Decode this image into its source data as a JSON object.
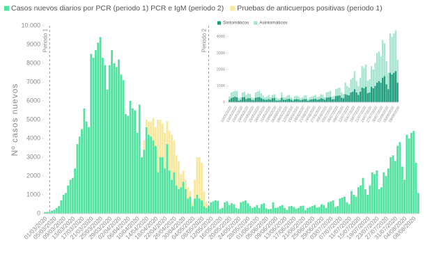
{
  "chart_data": [
    {
      "type": "bar",
      "stacked": true,
      "y_label": "Nº casos nuevos",
      "annotations": [
        "Periodo 1",
        "Periodo 2"
      ],
      "ylim": [
        0,
        10000
      ],
      "yticks": [
        0,
        1000,
        2000,
        3000,
        4000,
        5000,
        6000,
        7000,
        8000,
        9000,
        {
          "value": 10000,
          "label": "10.000"
        }
      ],
      "categories": [
        "01/03/2020",
        null,
        null,
        null,
        "05/03/2020",
        null,
        null,
        null,
        "09/03/2020",
        null,
        null,
        null,
        "13/03/2020",
        null,
        null,
        null,
        "17/03/2020",
        null,
        null,
        null,
        "21/03/2020",
        null,
        null,
        null,
        "25/03/2020",
        null,
        null,
        null,
        "29/03/2020",
        null,
        null,
        null,
        "02/04/2020",
        null,
        null,
        null,
        "06/04/2020",
        null,
        null,
        null,
        "10/04/2020",
        null,
        null,
        null,
        "14/04/2020",
        null,
        null,
        null,
        "18/04/2020",
        null,
        null,
        null,
        "22/04/2020",
        null,
        null,
        null,
        "26/04/2020",
        null,
        null,
        null,
        "30/04/2020",
        null,
        null,
        null,
        "04/05/2020",
        null,
        null,
        null,
        "08/05/2020",
        null,
        null,
        null,
        "12/05/2020",
        null,
        null,
        null,
        "16/05/2020",
        null,
        null,
        null,
        "20/05/2020",
        null,
        null,
        null,
        "24/05/2020",
        null,
        null,
        null,
        "28/05/2020",
        null,
        null,
        null,
        "01/06/2020",
        null,
        null,
        null,
        "05/06/2020",
        null,
        null,
        null,
        "09/06/2020",
        null,
        null,
        null,
        "13/06/2020",
        null,
        null,
        null,
        "17/06/2020",
        null,
        null,
        null,
        "21/06/2020",
        null,
        null,
        null,
        "25/06/2020",
        null,
        null,
        null,
        "29/06/2020",
        null,
        null,
        null,
        "03/07/2020",
        null,
        null,
        null,
        "07/07/2020",
        null,
        null,
        null,
        "11/07/2020",
        null,
        null,
        null,
        "15/07/2020",
        null,
        null,
        null,
        "19/07/2020",
        null,
        null,
        null,
        "23/07/2020",
        null,
        null,
        null,
        "27/07/2020",
        null,
        null,
        null,
        "31/07/2020",
        null,
        null,
        null,
        "04/08/2020",
        null,
        null,
        null,
        "08/08/2020",
        null,
        null
      ],
      "series": [
        {
          "name": "Casos nuevos diarios por PCR (periodo 1) PCR e IgM (periodo 2)",
          "color": "#52e3a1",
          "values": [
            80,
            90,
            100,
            150,
            200,
            300,
            400,
            700,
            1000,
            1100,
            1500,
            1800,
            1900,
            2400,
            3700,
            4100,
            4500,
            5600,
            4900,
            4600,
            8500,
            8300,
            8700,
            9100,
            9400,
            8300,
            7900,
            6600,
            7900,
            8700,
            8000,
            7800,
            8200,
            7400,
            7100,
            5300,
            5200,
            6000,
            5600,
            5500,
            4300,
            5800,
            3000,
            3400,
            4600,
            4200,
            4100,
            3900,
            3600,
            2200,
            3000,
            3000,
            2400,
            3700,
            2300,
            1800,
            2200,
            1500,
            1300,
            1400,
            1700,
            1300,
            800,
            900,
            400,
            800,
            1000,
            800,
            700,
            400,
            300,
            400,
            600,
            650,
            700,
            680,
            250,
            300,
            600,
            650,
            450,
            550,
            500,
            300,
            250,
            600,
            650,
            700,
            550,
            400,
            300,
            350,
            450,
            300,
            500,
            550,
            280,
            230,
            250,
            600,
            300,
            320,
            400,
            450,
            300,
            200,
            380,
            400,
            350,
            250,
            300,
            400,
            420,
            180,
            300,
            350,
            400,
            450,
            320,
            350,
            500,
            450,
            300,
            600,
            650,
            700,
            350,
            400,
            800,
            850,
            900,
            600,
            500,
            1200,
            1000,
            900,
            1400,
            1500,
            1900,
            1300,
            1000,
            1500,
            2200,
            2100,
            2300,
            1300,
            1400,
            2200,
            2000,
            2400,
            3000,
            3100,
            2800,
            3600,
            3800,
            2500,
            1800,
            4200,
            4000,
            4300,
            4400,
            2700,
            1100
          ]
        },
        {
          "name": "Pruebas de anticuerpos positivas (periodo 1)",
          "color": "#f8e79c",
          "values": [
            null,
            null,
            null,
            null,
            null,
            null,
            null,
            null,
            null,
            null,
            null,
            null,
            null,
            null,
            null,
            null,
            null,
            null,
            null,
            null,
            null,
            null,
            null,
            null,
            null,
            null,
            null,
            null,
            null,
            null,
            null,
            null,
            null,
            null,
            null,
            null,
            null,
            null,
            null,
            null,
            null,
            null,
            null,
            500,
            400,
            700,
            800,
            1200,
            1000,
            2800,
            2000,
            1800,
            1900,
            1200,
            2100,
            2400,
            1700,
            1600,
            1500,
            700,
            600,
            500,
            600,
            300,
            200,
            1000,
            2000,
            2200,
            2000,
            800,
            300,
            null,
            null,
            null,
            null,
            null,
            null,
            null,
            null,
            null,
            null,
            null,
            null,
            null,
            null,
            null,
            null,
            null,
            null,
            null,
            null,
            null,
            null,
            null,
            null,
            null,
            null,
            null,
            null,
            null,
            null,
            null,
            null,
            null,
            null,
            null,
            null,
            null,
            null,
            null,
            null,
            null,
            null,
            null,
            null,
            null,
            null,
            null,
            null,
            null,
            null,
            null,
            null,
            null,
            null,
            null,
            null,
            null,
            null,
            null,
            null,
            null,
            null,
            null,
            null,
            null,
            null,
            null,
            null,
            null,
            null,
            null,
            null,
            null,
            null,
            null,
            null,
            null,
            null,
            null,
            null,
            null,
            null,
            null,
            null,
            null,
            null,
            null,
            null,
            null,
            null,
            null,
            null
          ]
        }
      ]
    },
    {
      "type": "bar",
      "stacked": true,
      "ylim": [
        0,
        4500
      ],
      "yticks": [
        0,
        1000,
        2000,
        3000,
        4000
      ],
      "categories": [
        "10/05/2020",
        null,
        null,
        "13/05/2020",
        null,
        null,
        "16/05/2020",
        null,
        null,
        "19/05/2020",
        null,
        null,
        "22/05/2020",
        null,
        null,
        "25/05/2020",
        null,
        null,
        "28/05/2020",
        null,
        null,
        "31/05/2020",
        null,
        null,
        "03/06/2020",
        null,
        null,
        "06/06/2020",
        null,
        null,
        "09/06/2020",
        null,
        null,
        "12/06/2020",
        null,
        null,
        "15/06/2020",
        null,
        null,
        "18/06/2020",
        null,
        null,
        "21/06/2020",
        null,
        null,
        "24/06/2020",
        null,
        null,
        "27/06/2020",
        null,
        null,
        "30/06/2020",
        null,
        null,
        "03/07/2020",
        null,
        null,
        "06/07/2020",
        null,
        null,
        "09/07/2020",
        null,
        null,
        "12/07/2020",
        null,
        null,
        "15/07/2020",
        null,
        null,
        "18/07/2020",
        null,
        null,
        "21/07/2020",
        null,
        null,
        "24/07/2020",
        null,
        null,
        "27/07/2020",
        null,
        null,
        "30/07/2020",
        null,
        null,
        "02/08/2020",
        null,
        null,
        "05/08/2020",
        null,
        null,
        "08/08/2020"
      ],
      "series": [
        {
          "name": "Sintomáticos",
          "color": "#1e9b7a",
          "values": [
            150,
            250,
            300,
            350,
            300,
            100,
            150,
            300,
            320,
            200,
            250,
            250,
            150,
            120,
            280,
            300,
            320,
            250,
            200,
            150,
            150,
            200,
            150,
            250,
            270,
            120,
            100,
            120,
            280,
            150,
            150,
            200,
            220,
            150,
            100,
            180,
            200,
            170,
            120,
            150,
            200,
            200,
            90,
            150,
            170,
            200,
            220,
            160,
            170,
            250,
            220,
            150,
            280,
            300,
            320,
            170,
            200,
            380,
            400,
            420,
            280,
            250,
            500,
            450,
            420,
            600,
            650,
            800,
            600,
            450,
            650,
            900,
            850,
            950,
            550,
            600,
            950,
            850,
            1000,
            1200,
            1300,
            1200,
            1500,
            1600,
            1100,
            800,
            1800,
            1700,
            1800,
            1900,
            1200
          ]
        },
        {
          "name": "Asintomáticos",
          "color": "#a6e4cf",
          "values": [
            200,
            350,
            350,
            350,
            380,
            150,
            150,
            300,
            330,
            250,
            300,
            250,
            150,
            130,
            320,
            350,
            380,
            300,
            200,
            150,
            200,
            250,
            150,
            200,
            230,
            160,
            130,
            130,
            320,
            150,
            170,
            200,
            230,
            150,
            100,
            200,
            200,
            180,
            130,
            150,
            200,
            220,
            90,
            150,
            180,
            200,
            230,
            160,
            180,
            250,
            230,
            150,
            320,
            350,
            380,
            180,
            200,
            420,
            450,
            480,
            320,
            250,
            700,
            550,
            480,
            800,
            850,
            1100,
            700,
            550,
            850,
            1300,
            1250,
            1350,
            750,
            800,
            1250,
            1150,
            1400,
            1800,
            1800,
            1600,
            2300,
            2000,
            1400,
            1000,
            2400,
            2300,
            2400,
            2500,
            1400
          ]
        }
      ]
    }
  ]
}
